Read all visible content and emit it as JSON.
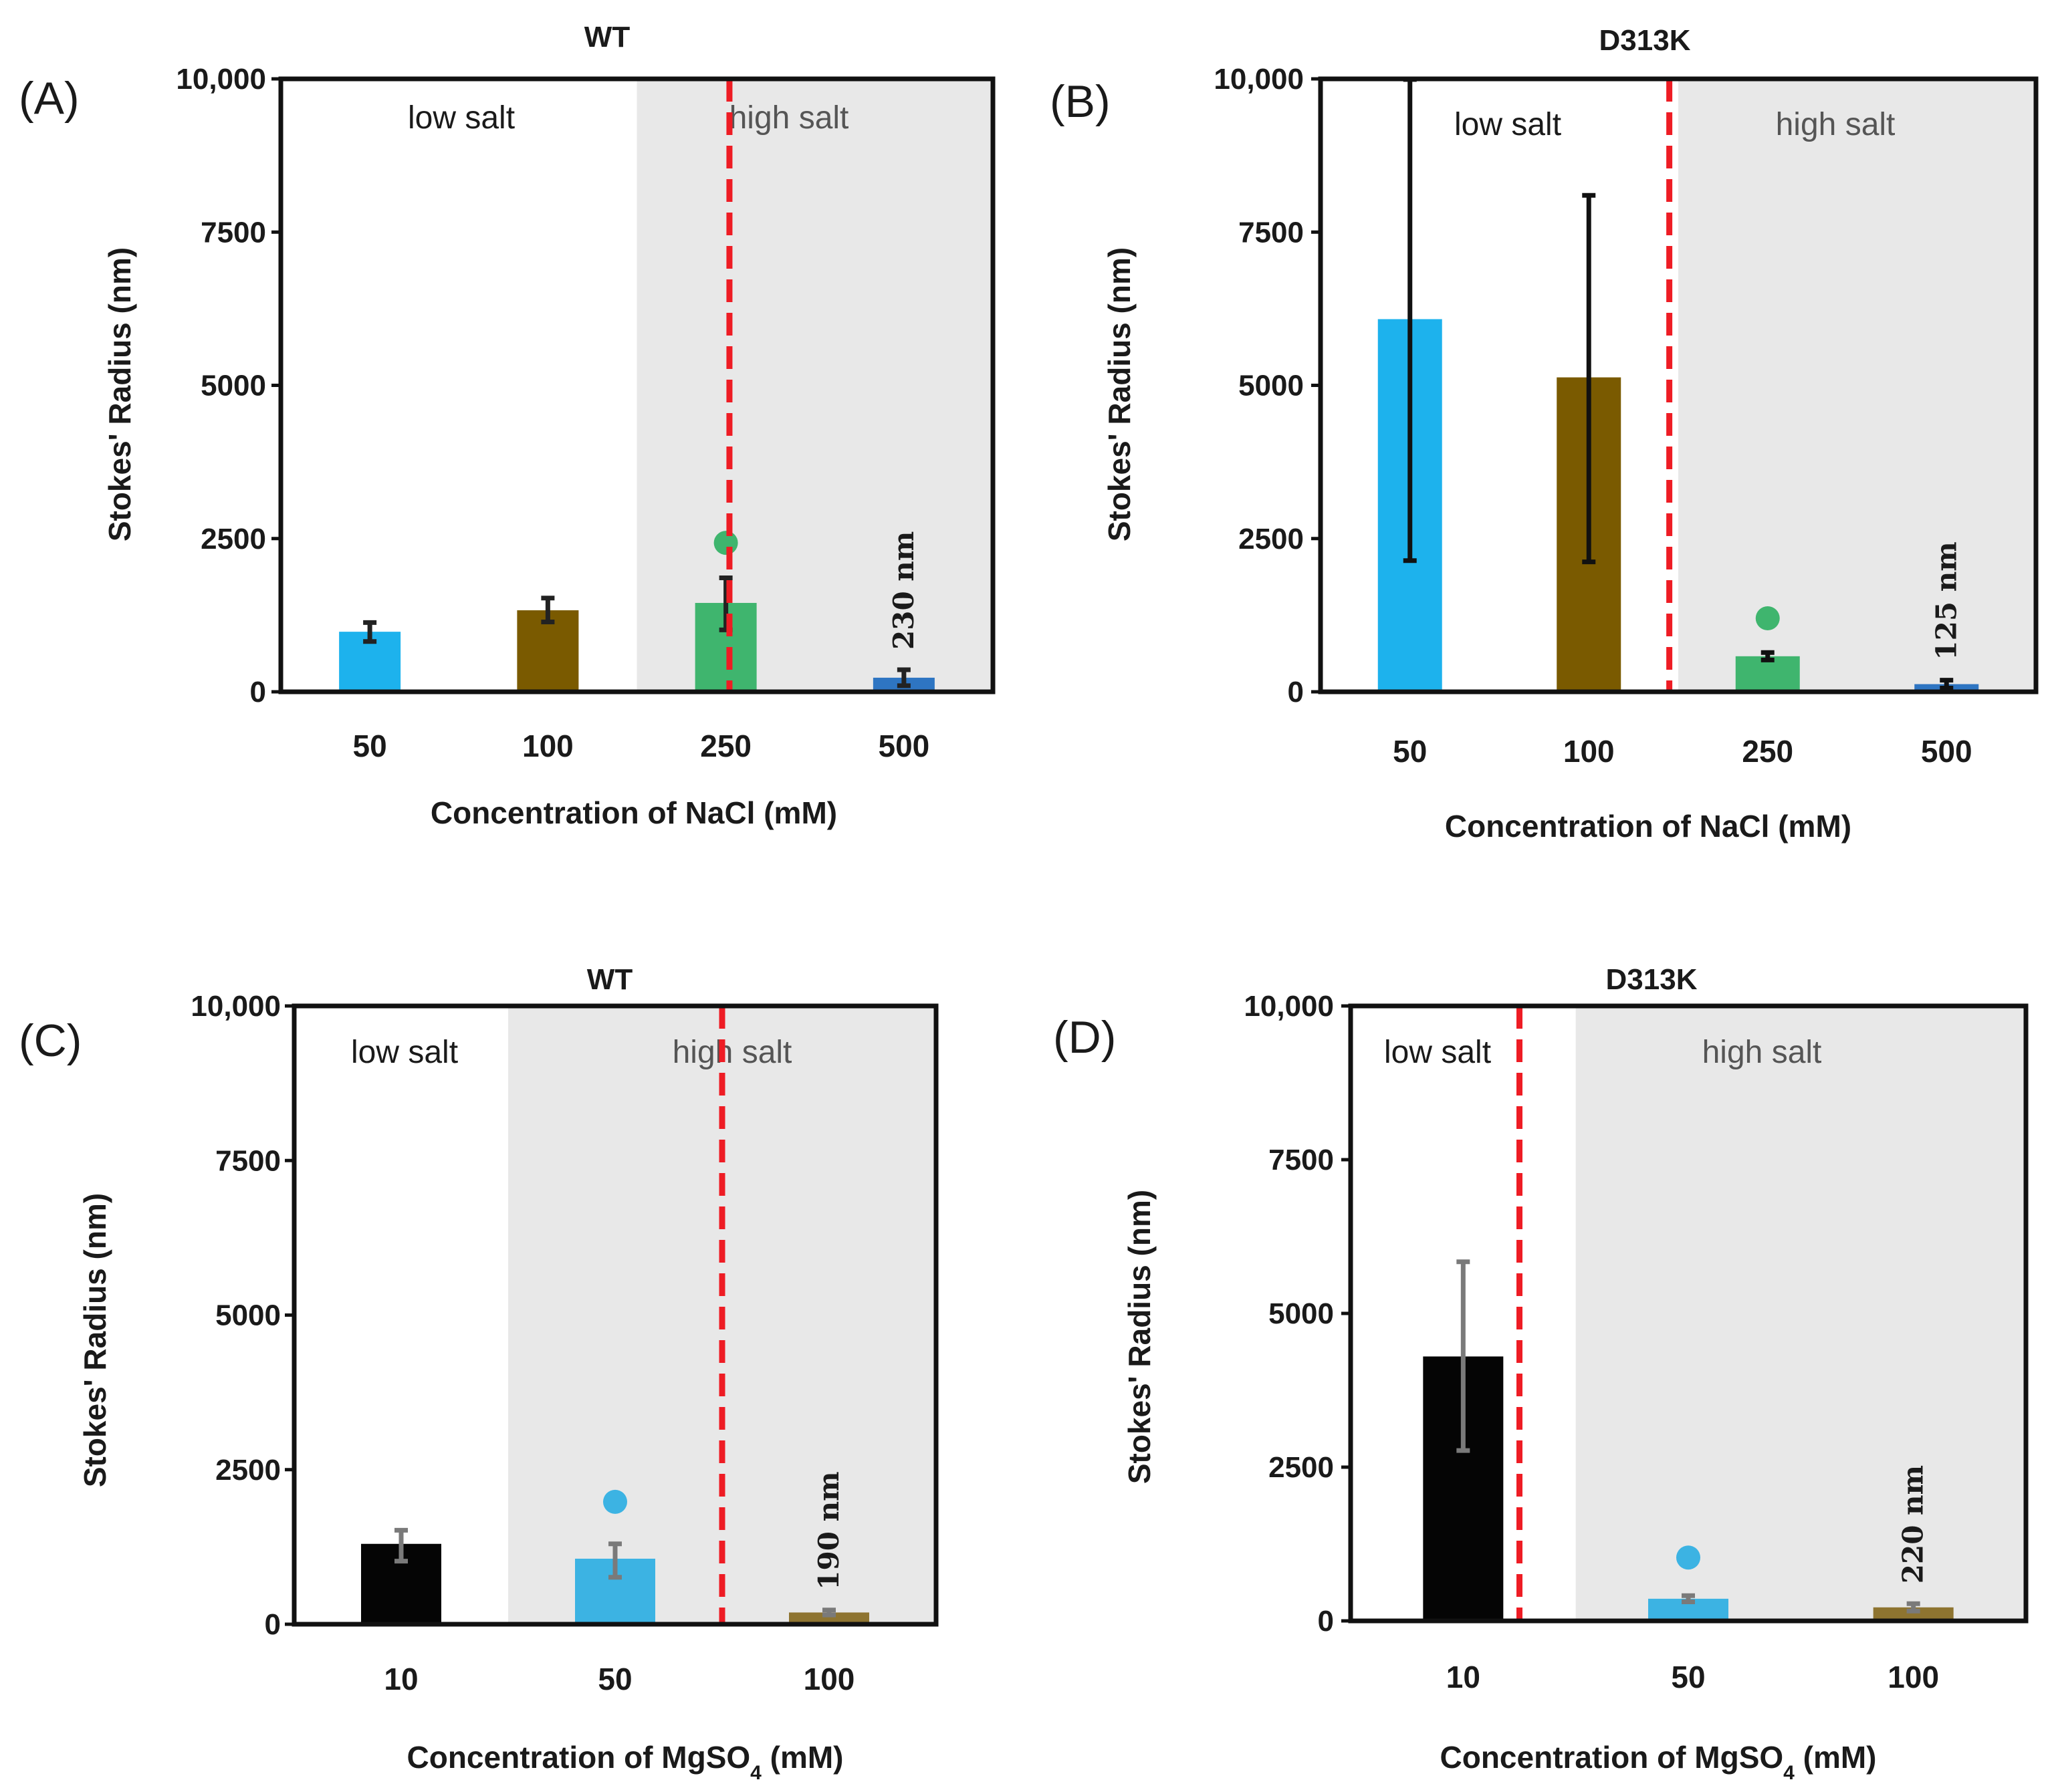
{
  "chart_data": [
    {
      "id": "A",
      "type": "bar",
      "panel_label": "(A)",
      "title": "WT",
      "ylabel": "Stokes' Radius (nm)",
      "xlabel": "Concentration of NaCl (mM)",
      "xlabel_sub": "",
      "xlabel_after": "",
      "ylim": [
        0,
        10000
      ],
      "yticks": [
        0,
        2500,
        5000,
        7500,
        10000
      ],
      "ytick_labels": [
        "0",
        "2500",
        "5000",
        "7500",
        "10,000"
      ],
      "categories": [
        "50",
        "100",
        "250",
        "500"
      ],
      "values": [
        980,
        1330,
        1450,
        230
      ],
      "err_low": [
        820,
        1140,
        1010,
        100
      ],
      "err_high": [
        1130,
        1530,
        1860,
        360
      ],
      "colors": [
        "#1db2ed",
        "#7a5a00",
        "#3fb56e",
        "#2e75c2"
      ],
      "err_color": "#222222",
      "marker": {
        "category_index": 2,
        "value": 2430,
        "color": "#3fb56e"
      },
      "annotation": {
        "category_index": 3,
        "text": "230 nm"
      },
      "shaded_from": 2,
      "threshold_after": 2,
      "region_low": "low salt",
      "region_high": "high salt"
    },
    {
      "id": "B",
      "type": "bar",
      "panel_label": "(B)",
      "title": "D313K",
      "ylabel": "Stokes' Radius (nm)",
      "xlabel": "Concentration of NaCl (mM)",
      "xlabel_sub": "",
      "xlabel_after": "",
      "ylim": [
        0,
        10000
      ],
      "yticks": [
        0,
        2500,
        5000,
        7500,
        10000
      ],
      "ytick_labels": [
        "0",
        "2500",
        "5000",
        "7500",
        "10,000"
      ],
      "categories": [
        "50",
        "100",
        "250",
        "500"
      ],
      "values": [
        6080,
        5130,
        580,
        125
      ],
      "err_low": [
        2140,
        2120,
        520,
        60
      ],
      "err_high": [
        9990,
        8100,
        640,
        190
      ],
      "colors": [
        "#1db2ed",
        "#7a5a00",
        "#3fb56e",
        "#2e75c2"
      ],
      "err_color": "#111111",
      "marker": {
        "category_index": 2,
        "value": 1200,
        "color": "#3fb56e"
      },
      "annotation": {
        "category_index": 3,
        "text": "125 nm"
      },
      "shaded_from": 2,
      "threshold_after": 1,
      "region_low": "low salt",
      "region_high": "high salt"
    },
    {
      "id": "C",
      "type": "bar",
      "panel_label": "(C)",
      "title": "WT",
      "ylabel": "Stokes' Radius (nm)",
      "xlabel": "Concentration of MgSO",
      "xlabel_sub": "4",
      "xlabel_after": " (mM)",
      "ylim": [
        0,
        10000
      ],
      "yticks": [
        0,
        2500,
        5000,
        7500,
        10000
      ],
      "ytick_labels": [
        "0",
        "2500",
        "5000",
        "7500",
        "10,000"
      ],
      "categories": [
        "10",
        "50",
        "100"
      ],
      "values": [
        1300,
        1060,
        190
      ],
      "err_low": [
        1020,
        760,
        150
      ],
      "err_high": [
        1520,
        1300,
        230
      ],
      "colors": [
        "#050505",
        "#3cb3e3",
        "#8e7430"
      ],
      "err_color": "#7a7a7a",
      "marker": {
        "category_index": 1,
        "value": 1980,
        "color": "#3cb3e3"
      },
      "annotation": {
        "category_index": 2,
        "text": "190 nm"
      },
      "shaded_from": 1,
      "threshold_after": 1,
      "region_low": "low salt",
      "region_high": "high salt"
    },
    {
      "id": "D",
      "type": "bar",
      "panel_label": "(D)",
      "title": "D313K",
      "ylabel": "Stokes' Radius (nm)",
      "xlabel": "Concentration of MgSO",
      "xlabel_sub": "4",
      "xlabel_after": " (mM)",
      "ylim": [
        0,
        10000
      ],
      "yticks": [
        0,
        2500,
        5000,
        7500,
        10000
      ],
      "ytick_labels": [
        "0",
        "2500",
        "5000",
        "7500",
        "10,000"
      ],
      "categories": [
        "10",
        "50",
        "100"
      ],
      "values": [
        4300,
        360,
        220
      ],
      "err_low": [
        2770,
        310,
        160
      ],
      "err_high": [
        5840,
        410,
        280
      ],
      "colors": [
        "#050505",
        "#3cb3e3",
        "#8e7430"
      ],
      "err_color": "#7a7a7a",
      "marker": {
        "category_index": 1,
        "value": 1030,
        "color": "#3cb3e3"
      },
      "annotation": {
        "category_index": 2,
        "text": "220 nm"
      },
      "shaded_from": 1,
      "threshold_after": 0,
      "region_low": "low salt",
      "region_high": "high salt"
    }
  ],
  "style": {
    "shade_color": "#e8e8e8",
    "threshold_color": "#ee1c24",
    "axis_color": "#111111",
    "high_salt_text_color": "#555555"
  }
}
